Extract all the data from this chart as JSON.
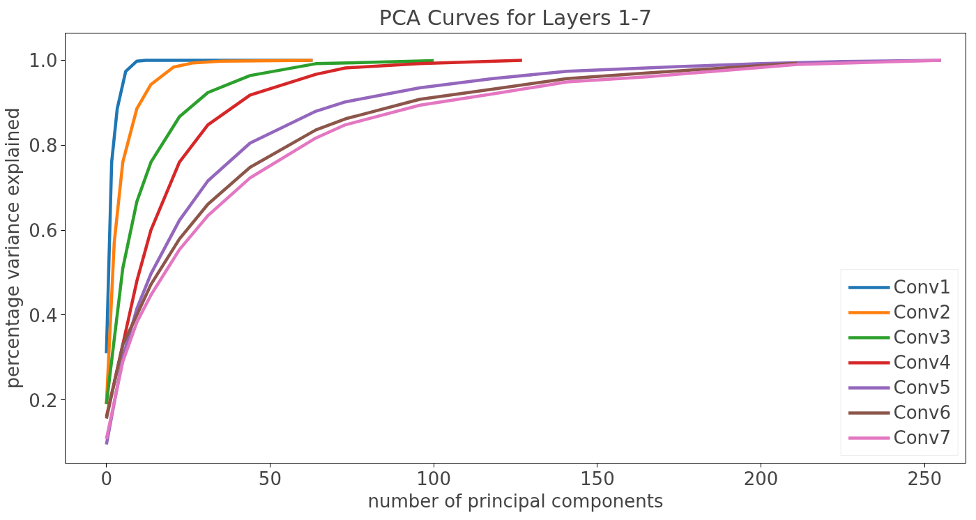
{
  "chart_data": {
    "type": "line",
    "title": "PCA Curves for Layers 1-7",
    "xlabel": "number of principal components",
    "ylabel": "percentage variance explained",
    "xlim": [
      -12.6,
      262.6
    ],
    "ylim": [
      0.051,
      1.064
    ],
    "xticks": [
      0,
      50,
      100,
      150,
      200,
      250
    ],
    "yticks": [
      0.2,
      0.4,
      0.6,
      0.8,
      {
        "value": 1,
        "label": "1.0"
      }
    ],
    "grid": false,
    "legend": "bottom right",
    "line_style": "solid",
    "series": [
      {
        "name": "Conv1",
        "color": "#1f77b4",
        "x": [
          0,
          1.6,
          3.3,
          5.9,
          9.3,
          12,
          63
        ],
        "values": [
          0.31,
          0.76,
          0.886,
          0.974,
          0.998,
          1.0,
          1.0
        ]
      },
      {
        "name": "Conv2",
        "color": "#ff7f0e",
        "x": [
          0,
          2.4,
          5,
          9.3,
          13.6,
          20.5,
          26.6,
          35,
          63
        ],
        "values": [
          0.19,
          0.572,
          0.76,
          0.886,
          0.943,
          0.984,
          0.994,
          0.998,
          1.0
        ]
      },
      {
        "name": "Conv3",
        "color": "#2ca02c",
        "x": [
          0,
          5,
          9.3,
          13.6,
          22.3,
          31,
          43.9,
          64,
          100
        ],
        "values": [
          0.19,
          0.51,
          0.667,
          0.76,
          0.867,
          0.924,
          0.964,
          0.992,
          0.999
        ]
      },
      {
        "name": "Conv4",
        "color": "#d62728",
        "x": [
          0,
          5,
          9.3,
          13.6,
          22.3,
          31,
          43.9,
          64,
          73,
          95.7,
          127
        ],
        "values": [
          0.16,
          0.33,
          0.48,
          0.6,
          0.76,
          0.848,
          0.918,
          0.967,
          0.982,
          0.992,
          1.0
        ]
      },
      {
        "name": "Conv5",
        "color": "#9467bd",
        "x": [
          0,
          5,
          9.3,
          13.6,
          22.3,
          31,
          43.9,
          64,
          73,
          95.7,
          118,
          140.8,
          175,
          200,
          225,
          255
        ],
        "values": [
          0.095,
          0.3,
          0.415,
          0.497,
          0.623,
          0.716,
          0.805,
          0.88,
          0.902,
          0.935,
          0.957,
          0.974,
          0.985,
          0.992,
          0.997,
          1.0
        ]
      },
      {
        "name": "Conv6",
        "color": "#8c564b",
        "x": [
          0,
          5,
          9.3,
          13.6,
          22.3,
          31,
          43.9,
          64,
          73,
          95.7,
          119,
          140.8,
          165,
          211
        ],
        "values": [
          0.156,
          0.33,
          0.4,
          0.472,
          0.579,
          0.661,
          0.748,
          0.836,
          0.862,
          0.908,
          0.933,
          0.957,
          0.97,
          0.993
        ]
      },
      {
        "name": "Conv7",
        "color": "#e377c2",
        "x": [
          0,
          5,
          9.3,
          13.6,
          22.3,
          31,
          43.9,
          64,
          73,
          95.7,
          119,
          140.8,
          165,
          211,
          255
        ],
        "values": [
          0.108,
          0.29,
          0.383,
          0.447,
          0.554,
          0.634,
          0.723,
          0.817,
          0.848,
          0.894,
          0.922,
          0.949,
          0.961,
          0.99,
          1.0
        ]
      }
    ]
  }
}
